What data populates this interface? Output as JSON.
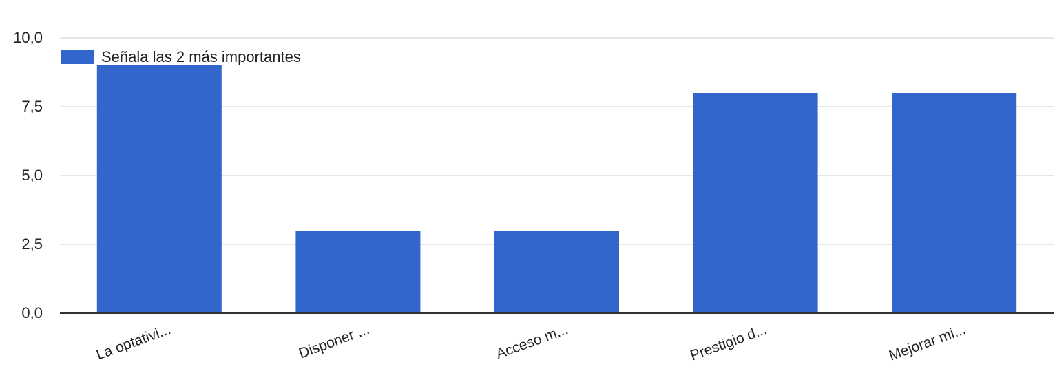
{
  "chart_data": {
    "type": "bar",
    "categories": [
      "La optativi...",
      "Disponer ...",
      "Acceso m...",
      "Prestigio d...",
      "Mejorar mi..."
    ],
    "series": [
      {
        "name": "Señala las 2 más importantes",
        "values": [
          9,
          3,
          3,
          8,
          8
        ]
      }
    ],
    "ylim": [
      0,
      10
    ],
    "yticks": [
      0,
      2.5,
      5,
      7.5,
      10
    ],
    "ytick_labels": [
      "0,0",
      "2,5",
      "5,0",
      "7,5",
      "10,0"
    ],
    "grid": true,
    "legend": "top-left",
    "colors": {
      "bar": "#3366cc",
      "grid": "#e6e6e6",
      "baseline": "#333333",
      "text": "#222222"
    }
  }
}
